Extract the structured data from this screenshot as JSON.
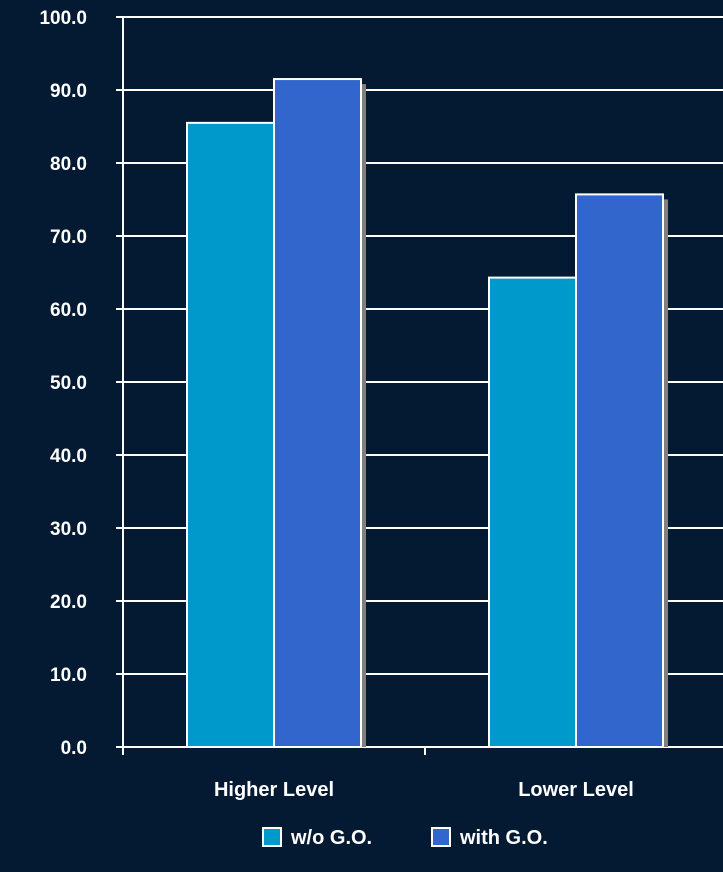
{
  "chart_data": {
    "type": "bar",
    "categories": [
      "Higher Level",
      "Lower Level"
    ],
    "series": [
      {
        "name": "w/o G.O.",
        "values": [
          85.5,
          64.3
        ],
        "color": "#0099cc"
      },
      {
        "name": "with G.O.",
        "values": [
          91.5,
          75.7
        ],
        "color": "#3366cc"
      }
    ],
    "ylim": [
      0,
      100
    ],
    "yticks": [
      0,
      10,
      20,
      30,
      40,
      50,
      60,
      70,
      80,
      90,
      100
    ],
    "tick_format_decimals": 1,
    "grid": true,
    "legend_position": "bottom",
    "colors": {
      "background": "#041a33",
      "text": "#ffffff",
      "axis": "#ffffff",
      "grid": "#ffffff",
      "bar_border": "#ffffff",
      "bar_shadow": "#808080"
    }
  }
}
